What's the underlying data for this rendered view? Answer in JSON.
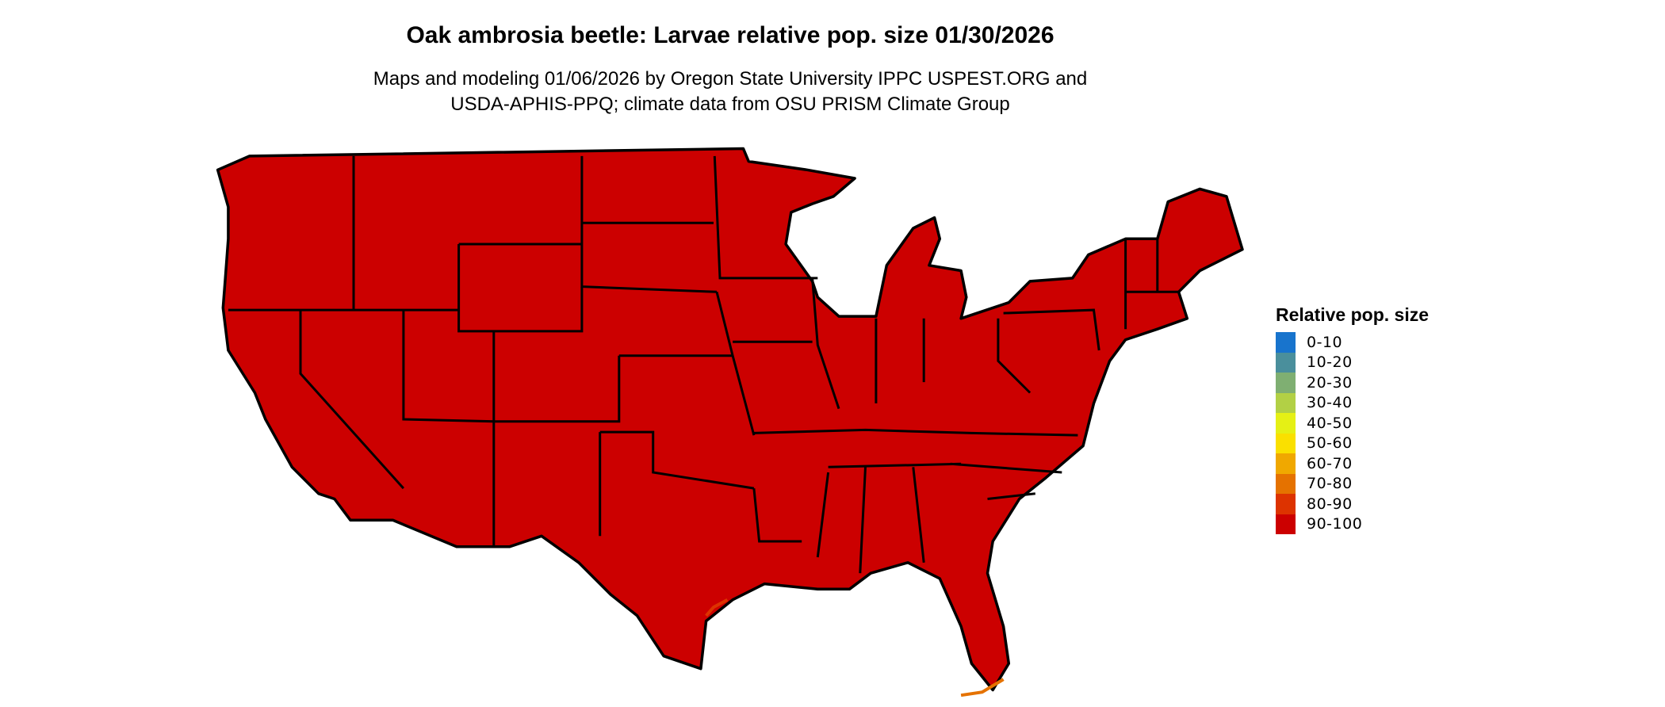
{
  "title": "Oak ambrosia beetle: Larvae relative pop. size 01/30/2026",
  "subtitle_line1": "Maps and modeling 01/06/2026 by Oregon State University IPPC USPEST.ORG and",
  "subtitle_line2": "USDA-APHIS-PPQ; climate data from OSU PRISM Climate Group",
  "map": {
    "region": "Contiguous United States",
    "fill_color": "#CC0000",
    "border_color": "#000000",
    "coastal_accent_colors": [
      "#DD3300",
      "#E57200"
    ]
  },
  "legend": {
    "title": "Relative pop. size",
    "items": [
      {
        "label": "0-10",
        "color": "#1874CD"
      },
      {
        "label": "10-20",
        "color": "#4A8F9C"
      },
      {
        "label": "20-30",
        "color": "#7FAF72"
      },
      {
        "label": "30-40",
        "color": "#B2D045"
      },
      {
        "label": "40-50",
        "color": "#E5F015"
      },
      {
        "label": "50-60",
        "color": "#FAE000"
      },
      {
        "label": "60-70",
        "color": "#F0A800"
      },
      {
        "label": "70-80",
        "color": "#E57200"
      },
      {
        "label": "80-90",
        "color": "#DD3300"
      },
      {
        "label": "90-100",
        "color": "#CC0000"
      }
    ]
  }
}
